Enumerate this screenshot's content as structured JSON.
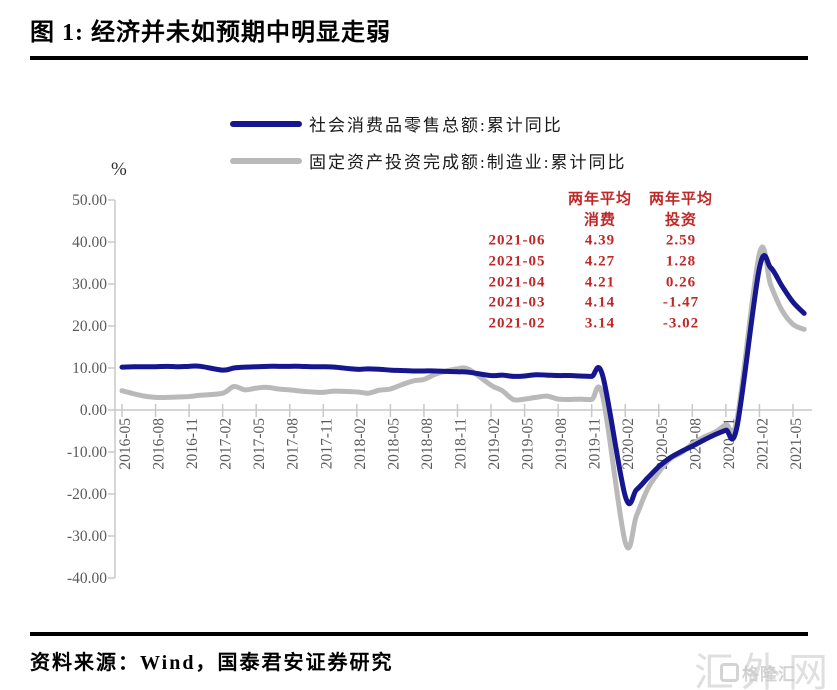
{
  "header": {
    "title": "图 1:  经济并未如预期中明显走弱"
  },
  "legend": {
    "items": [
      {
        "label": "社会消费品零售总额:累计同比",
        "color": "#16168e"
      },
      {
        "label": "固定资产投资完成额:制造业:累计同比",
        "color": "#b9b9b9"
      }
    ]
  },
  "chart_data": {
    "type": "line",
    "title": "经济并未如预期中明显走弱",
    "y_unit": "%",
    "xlabel": "",
    "ylabel": "%",
    "ylim": [
      -40,
      50
    ],
    "grid": false,
    "legend_position": "top",
    "axis_color": "#c8c8c8",
    "tick_label_color": "#5a5a5a",
    "y_ticks": [
      "50.00",
      "40.00",
      "30.00",
      "20.00",
      "10.00",
      "0.00",
      "-10.00",
      "-20.00",
      "-30.00",
      "-40.00"
    ],
    "x_ticks": [
      "2016-05",
      "2016-08",
      "2016-11",
      "2017-02",
      "2017-05",
      "2017-08",
      "2017-11",
      "2018-02",
      "2018-05",
      "2018-08",
      "2018-11",
      "2019-02",
      "2019-05",
      "2019-08",
      "2019-11",
      "2020-02",
      "2020-05",
      "2020-08",
      "2020-11",
      "2021-02",
      "2021-05"
    ],
    "series": [
      {
        "name": "固定资产投资完成额:制造业:累计同比",
        "color": "#b9b9b9",
        "points": [
          [
            "2016-05",
            4.6
          ],
          [
            "2016-06",
            3.9
          ],
          [
            "2016-07",
            3.3
          ],
          [
            "2016-08",
            3.0
          ],
          [
            "2016-09",
            3.0
          ],
          [
            "2016-10",
            3.1
          ],
          [
            "2016-11",
            3.2
          ],
          [
            "2016-12",
            3.5
          ],
          [
            "2017-02",
            4.0
          ],
          [
            "2017-03",
            5.6
          ],
          [
            "2017-04",
            4.8
          ],
          [
            "2017-05",
            5.2
          ],
          [
            "2017-06",
            5.4
          ],
          [
            "2017-07",
            5.0
          ],
          [
            "2017-08",
            4.8
          ],
          [
            "2017-09",
            4.5
          ],
          [
            "2017-10",
            4.3
          ],
          [
            "2017-11",
            4.2
          ],
          [
            "2017-12",
            4.5
          ],
          [
            "2018-02",
            4.3
          ],
          [
            "2018-03",
            4.0
          ],
          [
            "2018-04",
            4.7
          ],
          [
            "2018-05",
            5.0
          ],
          [
            "2018-06",
            6.0
          ],
          [
            "2018-07",
            6.9
          ],
          [
            "2018-08",
            7.3
          ],
          [
            "2018-09",
            8.5
          ],
          [
            "2018-10",
            9.3
          ],
          [
            "2018-11",
            9.8
          ],
          [
            "2018-12",
            9.7
          ],
          [
            "2019-02",
            5.9
          ],
          [
            "2019-03",
            4.6
          ],
          [
            "2019-04",
            2.5
          ],
          [
            "2019-05",
            2.6
          ],
          [
            "2019-06",
            3.0
          ],
          [
            "2019-07",
            3.3
          ],
          [
            "2019-08",
            2.6
          ],
          [
            "2019-09",
            2.5
          ],
          [
            "2019-10",
            2.6
          ],
          [
            "2019-11",
            2.5
          ],
          [
            "2019-12",
            3.1
          ],
          [
            "2020-02",
            -31.5
          ],
          [
            "2020-03",
            -25.2
          ],
          [
            "2020-04",
            -18.8
          ],
          [
            "2020-05",
            -14.8
          ],
          [
            "2020-06",
            -11.7
          ],
          [
            "2020-07",
            -10.2
          ],
          [
            "2020-08",
            -8.1
          ],
          [
            "2020-09",
            -6.5
          ],
          [
            "2020-10",
            -5.3
          ],
          [
            "2020-11",
            -3.5
          ],
          [
            "2020-12",
            -2.2
          ],
          [
            "2021-02",
            37.3
          ],
          [
            "2021-03",
            29.8
          ],
          [
            "2021-04",
            23.8
          ],
          [
            "2021-05",
            20.4
          ],
          [
            "2021-06",
            19.2
          ]
        ]
      },
      {
        "name": "社会消费品零售总额:累计同比",
        "color": "#16168e",
        "points": [
          [
            "2016-05",
            10.2
          ],
          [
            "2016-06",
            10.3
          ],
          [
            "2016-07",
            10.3
          ],
          [
            "2016-08",
            10.3
          ],
          [
            "2016-09",
            10.4
          ],
          [
            "2016-10",
            10.3
          ],
          [
            "2016-11",
            10.4
          ],
          [
            "2016-12",
            10.4
          ],
          [
            "2017-02",
            9.5
          ],
          [
            "2017-03",
            10.0
          ],
          [
            "2017-04",
            10.2
          ],
          [
            "2017-05",
            10.3
          ],
          [
            "2017-06",
            10.4
          ],
          [
            "2017-07",
            10.4
          ],
          [
            "2017-08",
            10.4
          ],
          [
            "2017-09",
            10.4
          ],
          [
            "2017-10",
            10.3
          ],
          [
            "2017-11",
            10.3
          ],
          [
            "2017-12",
            10.2
          ],
          [
            "2018-02",
            9.7
          ],
          [
            "2018-03",
            9.8
          ],
          [
            "2018-04",
            9.7
          ],
          [
            "2018-05",
            9.5
          ],
          [
            "2018-06",
            9.4
          ],
          [
            "2018-07",
            9.3
          ],
          [
            "2018-08",
            9.3
          ],
          [
            "2018-09",
            9.3
          ],
          [
            "2018-10",
            9.2
          ],
          [
            "2018-11",
            9.1
          ],
          [
            "2018-12",
            9.0
          ],
          [
            "2019-02",
            8.2
          ],
          [
            "2019-03",
            8.3
          ],
          [
            "2019-04",
            8.0
          ],
          [
            "2019-05",
            8.1
          ],
          [
            "2019-06",
            8.4
          ],
          [
            "2019-07",
            8.3
          ],
          [
            "2019-08",
            8.2
          ],
          [
            "2019-09",
            8.2
          ],
          [
            "2019-10",
            8.1
          ],
          [
            "2019-11",
            8.0
          ],
          [
            "2019-12",
            8.0
          ],
          [
            "2020-02",
            -20.5
          ],
          [
            "2020-03",
            -19.0
          ],
          [
            "2020-04",
            -16.2
          ],
          [
            "2020-05",
            -13.5
          ],
          [
            "2020-06",
            -11.4
          ],
          [
            "2020-07",
            -9.9
          ],
          [
            "2020-08",
            -8.6
          ],
          [
            "2020-09",
            -7.2
          ],
          [
            "2020-10",
            -5.9
          ],
          [
            "2020-11",
            -4.8
          ],
          [
            "2020-12",
            -3.9
          ],
          [
            "2021-02",
            33.8
          ],
          [
            "2021-03",
            33.9
          ],
          [
            "2021-04",
            29.6
          ],
          [
            "2021-05",
            25.7
          ],
          [
            "2021-06",
            23.0
          ]
        ]
      }
    ]
  },
  "annotation_table": {
    "color": "#c02828",
    "col_headers": [
      {
        "line1": "两年平均",
        "line2": "消费"
      },
      {
        "line1": "两年平均",
        "line2": "投资"
      }
    ],
    "rows": [
      {
        "date": "2021-06",
        "consumption": "4.39",
        "investment": "2.59"
      },
      {
        "date": "2021-05",
        "consumption": "4.27",
        "investment": "1.28"
      },
      {
        "date": "2021-04",
        "consumption": "4.21",
        "investment": "0.26"
      },
      {
        "date": "2021-03",
        "consumption": "4.14",
        "investment": "-1.47"
      },
      {
        "date": "2021-02",
        "consumption": "3.14",
        "investment": "-3.02"
      }
    ]
  },
  "footer": {
    "source": "资料来源：Wind，国泰君安证券研究",
    "watermark_large": "汇外网",
    "watermark_small": "格隆汇"
  }
}
